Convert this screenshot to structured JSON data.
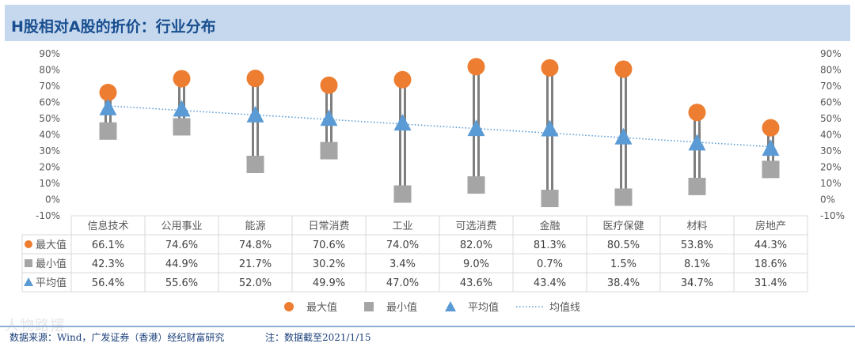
{
  "header": {
    "title": "H股相对A股的折价：行业分布"
  },
  "footer": {
    "source": "数据来源：Wind，广发证券（香港）经纪财富研究",
    "note": "注：数据截至2021/1/15"
  },
  "watermark": {
    "text": "人物路摆"
  },
  "chart_data": {
    "type": "dot-range",
    "categories": [
      "信息技术",
      "公用事业",
      "能源",
      "日常消费",
      "工业",
      "可选消费",
      "金融",
      "医疗保健",
      "材料",
      "房地产"
    ],
    "series": [
      {
        "name": "最大值",
        "marker": "circle",
        "color": "#ed7d31",
        "values": [
          66.1,
          74.6,
          74.8,
          70.6,
          74.0,
          82.0,
          81.3,
          80.5,
          53.8,
          44.3
        ],
        "labels": [
          "66.1%",
          "74.6%",
          "74.8%",
          "70.6%",
          "74.0%",
          "82.0%",
          "81.3%",
          "80.5%",
          "53.8%",
          "44.3%"
        ]
      },
      {
        "name": "最小值",
        "marker": "square",
        "color": "#a5a5a5",
        "values": [
          42.3,
          44.9,
          21.7,
          30.2,
          3.4,
          9.0,
          0.7,
          1.5,
          8.1,
          18.6
        ],
        "labels": [
          "42.3%",
          "44.9%",
          "21.7%",
          "30.2%",
          "3.4%",
          "9.0%",
          "0.7%",
          "1.5%",
          "8.1%",
          "18.6%"
        ]
      },
      {
        "name": "平均值",
        "marker": "triangle",
        "color": "#5b9bd5",
        "values": [
          56.4,
          55.6,
          52.0,
          49.9,
          47.0,
          43.6,
          43.4,
          38.4,
          34.7,
          31.4
        ],
        "labels": [
          "56.4%",
          "55.6%",
          "52.0%",
          "49.9%",
          "47.0%",
          "43.6%",
          "43.4%",
          "38.4%",
          "34.7%",
          "31.4%"
        ]
      }
    ],
    "trendline": {
      "name": "均值线",
      "style": "dotted",
      "color": "#5b9bd5"
    },
    "y_axis": {
      "min": -10,
      "max": 90,
      "step": 10,
      "ticks": [
        "90%",
        "80%",
        "70%",
        "60%",
        "50%",
        "40%",
        "30%",
        "20%",
        "10%",
        "0%",
        "-10%"
      ]
    },
    "secondary_y_axis": {
      "ticks": [
        "90%",
        "80%",
        "70%",
        "60%",
        "50%",
        "40%",
        "30%",
        "20%",
        "10%",
        "0%",
        "-10%"
      ]
    },
    "data_table": true,
    "legend_position": "bottom"
  }
}
